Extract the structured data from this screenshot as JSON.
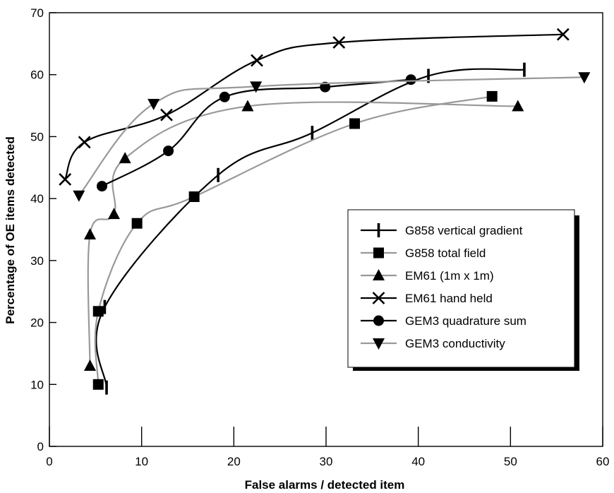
{
  "chart_data": {
    "type": "line",
    "title": "",
    "xlabel": "False alarms / detected item",
    "ylabel": "Percentage of OE items detected",
    "xlim": [
      0,
      60
    ],
    "ylim": [
      0,
      70
    ],
    "x_ticks": [
      0,
      10,
      20,
      30,
      40,
      50,
      60
    ],
    "y_ticks": [
      0,
      10,
      20,
      30,
      40,
      50,
      60,
      70
    ],
    "grid": false,
    "legend_position": "right",
    "series": [
      {
        "name": "G858 vertical gradient",
        "color": "#000000",
        "marker": "vbar",
        "points": [
          [
            6.2,
            9.5
          ],
          [
            6.0,
            22.5
          ],
          [
            18.3,
            43.8
          ],
          [
            28.5,
            50.6
          ],
          [
            41.1,
            59.8
          ],
          [
            51.5,
            60.8
          ]
        ]
      },
      {
        "name": "G858 total field",
        "color": "#999999",
        "marker": "square",
        "points": [
          [
            5.3,
            10.0
          ],
          [
            5.3,
            21.8
          ],
          [
            9.5,
            36.0
          ],
          [
            15.7,
            40.3
          ],
          [
            33.1,
            52.1
          ],
          [
            48.0,
            56.5
          ]
        ]
      },
      {
        "name": "EM61 (1m x 1m)",
        "color": "#999999",
        "marker": "triangle-up",
        "points": [
          [
            4.4,
            13.0
          ],
          [
            4.4,
            34.2
          ],
          [
            7.0,
            37.5
          ],
          [
            8.2,
            46.5
          ],
          [
            21.5,
            54.9
          ],
          [
            50.8,
            54.9
          ]
        ]
      },
      {
        "name": "EM61 hand held",
        "color": "#000000",
        "marker": "x",
        "points": [
          [
            1.7,
            43.1
          ],
          [
            3.8,
            49.1
          ],
          [
            12.7,
            53.5
          ],
          [
            22.5,
            62.3
          ],
          [
            31.4,
            65.2
          ],
          [
            55.7,
            66.5
          ]
        ]
      },
      {
        "name": "GEM3 quadrature sum",
        "color": "#000000",
        "marker": "circle",
        "points": [
          [
            5.7,
            42.0
          ],
          [
            12.9,
            47.7
          ],
          [
            19.0,
            56.4
          ],
          [
            29.9,
            58.0
          ],
          [
            39.2,
            59.2
          ]
        ]
      },
      {
        "name": "GEM3 conductivity",
        "color": "#999999",
        "marker": "triangle-down",
        "points": [
          [
            3.2,
            40.5
          ],
          [
            11.3,
            55.3
          ],
          [
            22.4,
            58.1
          ],
          [
            58.0,
            59.6
          ]
        ]
      }
    ]
  }
}
